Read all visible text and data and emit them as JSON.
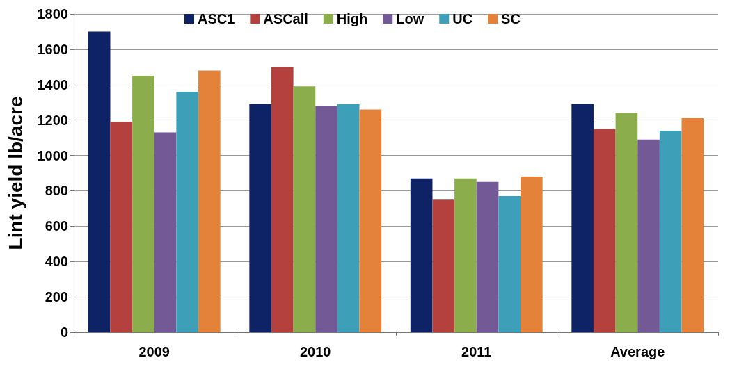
{
  "chart_data": {
    "type": "bar",
    "ylabel": "Lint yield lb/acre",
    "categories": [
      "2009",
      "2010",
      "2011",
      "Average"
    ],
    "series": [
      {
        "name": "ASC1",
        "color": "#0d2366",
        "values": [
          1700,
          1290,
          870,
          1290
        ]
      },
      {
        "name": "ASCall",
        "color": "#b5413e",
        "values": [
          1190,
          1500,
          750,
          1150
        ]
      },
      {
        "name": "High",
        "color": "#8cad4c",
        "values": [
          1450,
          1390,
          870,
          1240
        ]
      },
      {
        "name": "Low",
        "color": "#735a97",
        "values": [
          1130,
          1280,
          850,
          1090
        ]
      },
      {
        "name": "UC",
        "color": "#3d9fb8",
        "values": [
          1360,
          1290,
          770,
          1140
        ]
      },
      {
        "name": "SC",
        "color": "#e5823a",
        "values": [
          1480,
          1260,
          880,
          1210
        ]
      }
    ],
    "ylim": [
      0,
      1800
    ],
    "yticks": [
      0,
      200,
      400,
      600,
      800,
      1000,
      1200,
      1400,
      1600,
      1800
    ],
    "grid": "y",
    "legend": "top"
  }
}
